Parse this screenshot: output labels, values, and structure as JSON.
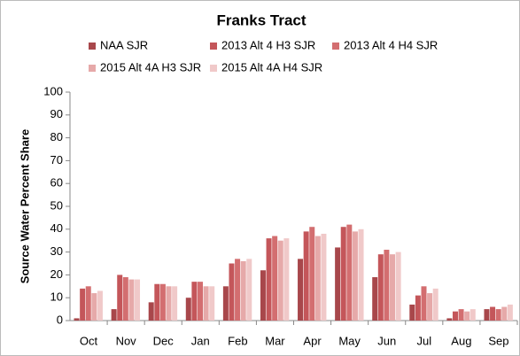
{
  "chart_data": {
    "type": "bar",
    "title": "Franks Tract",
    "y_label": "Source Water Percent Share",
    "categories": [
      "Oct",
      "Nov",
      "Dec",
      "Jan",
      "Feb",
      "Mar",
      "Apr",
      "May",
      "Jun",
      "Jul",
      "Aug",
      "Sep"
    ],
    "series": [
      {
        "name": "NAA SJR",
        "color": "#a8474b",
        "values": [
          1,
          5,
          8,
          10,
          15,
          22,
          27,
          32,
          19,
          7,
          1,
          5
        ]
      },
      {
        "name": "2013 Alt 4 H3 SJR",
        "color": "#c4565a",
        "values": [
          14,
          20,
          16,
          17,
          25,
          36,
          39,
          41,
          29,
          11,
          4,
          6
        ]
      },
      {
        "name": "2013 Alt 4 H4 SJR",
        "color": "#d36e70",
        "values": [
          15,
          19,
          16,
          17,
          27,
          37,
          41,
          42,
          31,
          15,
          5,
          5
        ]
      },
      {
        "name": "2015 Alt 4A H3 SJR",
        "color": "#e6a9a9",
        "values": [
          12,
          18,
          15,
          15,
          26,
          35,
          37,
          39,
          29,
          12,
          4,
          6
        ]
      },
      {
        "name": "2015 Alt 4A H4 SJR",
        "color": "#f0c9c9",
        "values": [
          13,
          18,
          15,
          15,
          27,
          36,
          38,
          40,
          30,
          14,
          5,
          7
        ]
      }
    ],
    "ylim": [
      0,
      100
    ],
    "yticks": [
      0,
      10,
      20,
      30,
      40,
      50,
      60,
      70,
      80,
      90,
      100
    ],
    "grid": false
  }
}
